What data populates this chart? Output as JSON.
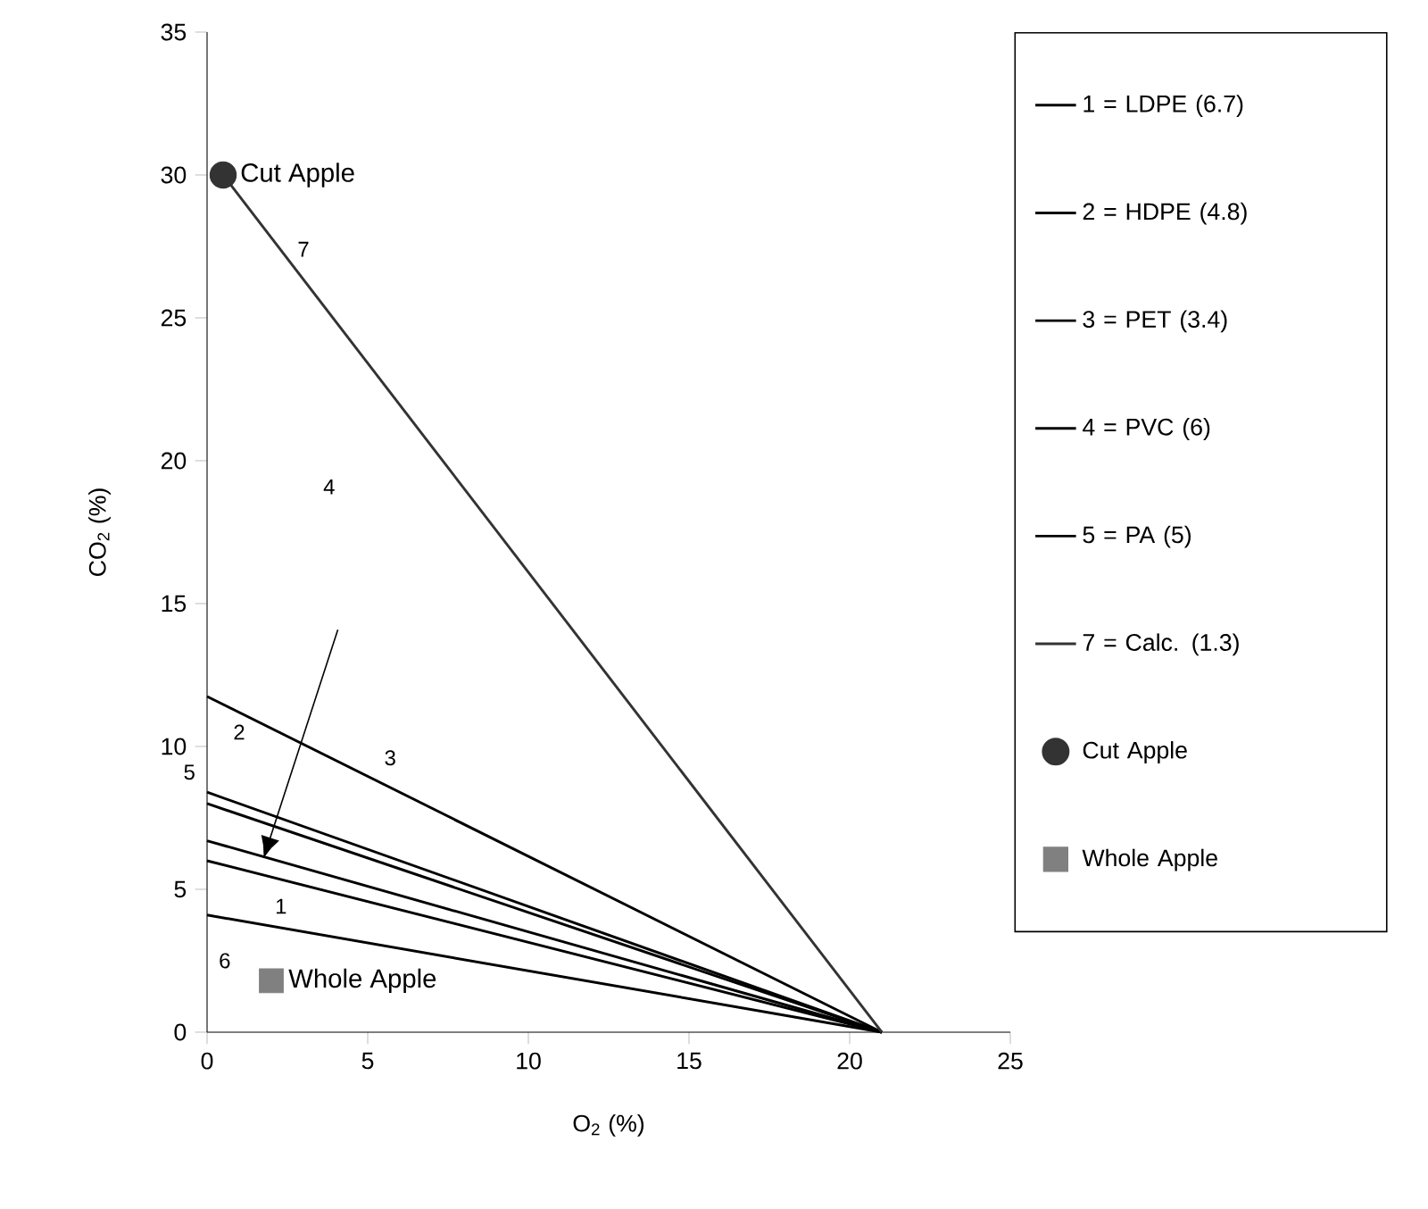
{
  "chart_data": {
    "type": "line",
    "xlabel": "O$_{2}$ (%)",
    "ylabel": "CO$_{2}$ (%)",
    "xlim": [
      0,
      25
    ],
    "ylim": [
      0,
      35
    ],
    "xticks": [
      0,
      5,
      10,
      15,
      20,
      25
    ],
    "yticks": [
      0,
      5,
      10,
      15,
      20,
      25,
      30,
      35
    ],
    "grid": false,
    "legend": "right",
    "marker": "none",
    "line_style": "solid",
    "series": [
      {
        "name": "1 = LDPE (6.7)",
        "color": "#000000",
        "x": [
          0,
          21
        ],
        "values": [
          6.0,
          0
        ]
      },
      {
        "name": "2 = HDPE (4.8)",
        "color": "#000000",
        "x": [
          0,
          21
        ],
        "values": [
          8.4,
          0
        ]
      },
      {
        "name": "3 = PET (3.4)",
        "color": "#000000",
        "x": [
          0,
          21
        ],
        "values": [
          11.75,
          0
        ]
      },
      {
        "name": "4 = PVC (6)",
        "color": "#000000",
        "x": [
          0,
          21
        ],
        "values": [
          6.7,
          0
        ]
      },
      {
        "name": "5 = PA (5)",
        "color": "#000000",
        "x": [
          0,
          21
        ],
        "values": [
          8.0,
          0
        ]
      },
      {
        "color": "#000000",
        "x": [
          0,
          21
        ],
        "values": [
          4.1,
          0
        ]
      },
      {
        "name": "7 = Calc. (1.3)",
        "color": "#333333",
        "x": [
          0.5,
          21
        ],
        "values": [
          30,
          0
        ]
      },
      {
        "name": "Cut Apple",
        "type": "scatter",
        "marker": "circle",
        "color": "#333333",
        "x": [
          0.5
        ],
        "values": [
          30
        ]
      },
      {
        "name": "Whole Apple",
        "type": "scatter",
        "marker": "square",
        "color": "#808080",
        "x": [
          2
        ],
        "values": [
          1.8
        ]
      }
    ],
    "annotations": [
      "1",
      "2",
      "3",
      "4",
      "5",
      "6",
      "7"
    ]
  }
}
